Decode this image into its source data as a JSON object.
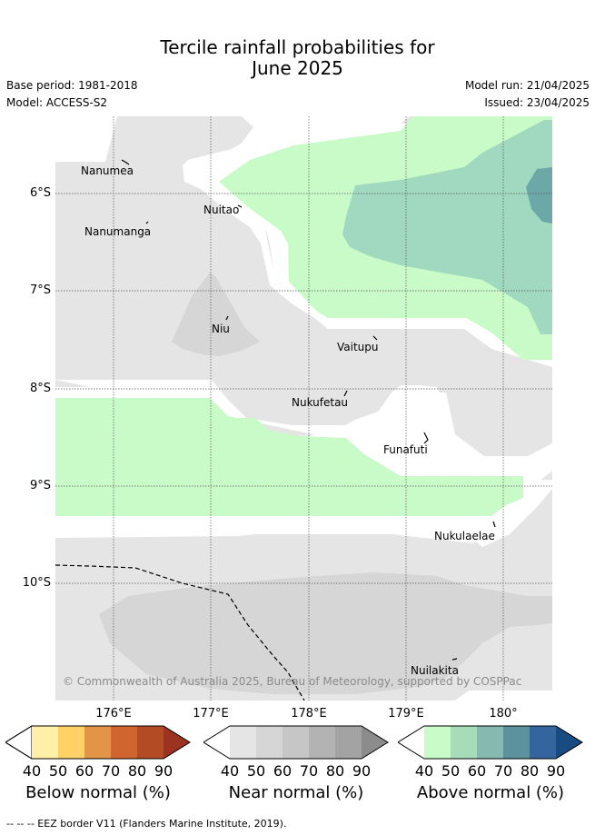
{
  "title_line1": "Tercile rainfall probabilities for",
  "title_line2": "June 2025",
  "base_period": "Base period: 1981-2018",
  "model": "Model: ACCESS-S2",
  "model_run": "Model run: 21/04/2025",
  "issued": "Issued: 23/04/2025",
  "lat_labels": [
    "6°S",
    "7°S",
    "8°S",
    "9°S",
    "10°S"
  ],
  "lon_labels": [
    "176°E",
    "177°E",
    "178°E",
    "179°E",
    "180°"
  ],
  "places": {
    "nanumea": "Nanumea",
    "nuitao": "Nuitao",
    "nanumanga": "Nanumanga",
    "niu": "Niu",
    "vaitupu": "Vaitupu",
    "nukufetau": "Nukufetau",
    "funafuti": "Funafuti",
    "nukulaelae": "Nukulaelae",
    "nuilakita": "Nuilakita"
  },
  "copyright": "© Commonwealth of Australia 2025, Bureau of Meteorology, supported by COSPPac",
  "colorbars": [
    {
      "title": "Below normal (%)",
      "ticks": [
        "40",
        "50",
        "60",
        "70",
        "80",
        "90"
      ],
      "colors": [
        "#fff0a8",
        "#ffd166",
        "#e39446",
        "#d0652f",
        "#b34b25",
        "#9c3220"
      ]
    },
    {
      "title": "Near normal (%)",
      "ticks": [
        "40",
        "50",
        "60",
        "70",
        "80",
        "90"
      ],
      "colors": [
        "#e5e5e5",
        "#d6d6d6",
        "#c6c6c6",
        "#b3b3b3",
        "#a3a3a3",
        "#8c8c8c"
      ]
    },
    {
      "title": "Above normal (%)",
      "ticks": [
        "40",
        "50",
        "60",
        "70",
        "80",
        "90"
      ],
      "colors": [
        "#c8fbc8",
        "#a8dbb7",
        "#86b9b0",
        "#5b929d",
        "#34659e",
        "#174b82"
      ]
    }
  ],
  "footer": "-- -- -- EEZ border V11 (Flanders Marine Institute, 2019).",
  "colors": {
    "near_normal_40": "#e5e5e5",
    "near_normal_50": "#d6d6d6",
    "above_normal_40": "#c8fbc8",
    "above_normal_50": "#a0d8c0",
    "above_normal_60": "#6da8a8"
  }
}
